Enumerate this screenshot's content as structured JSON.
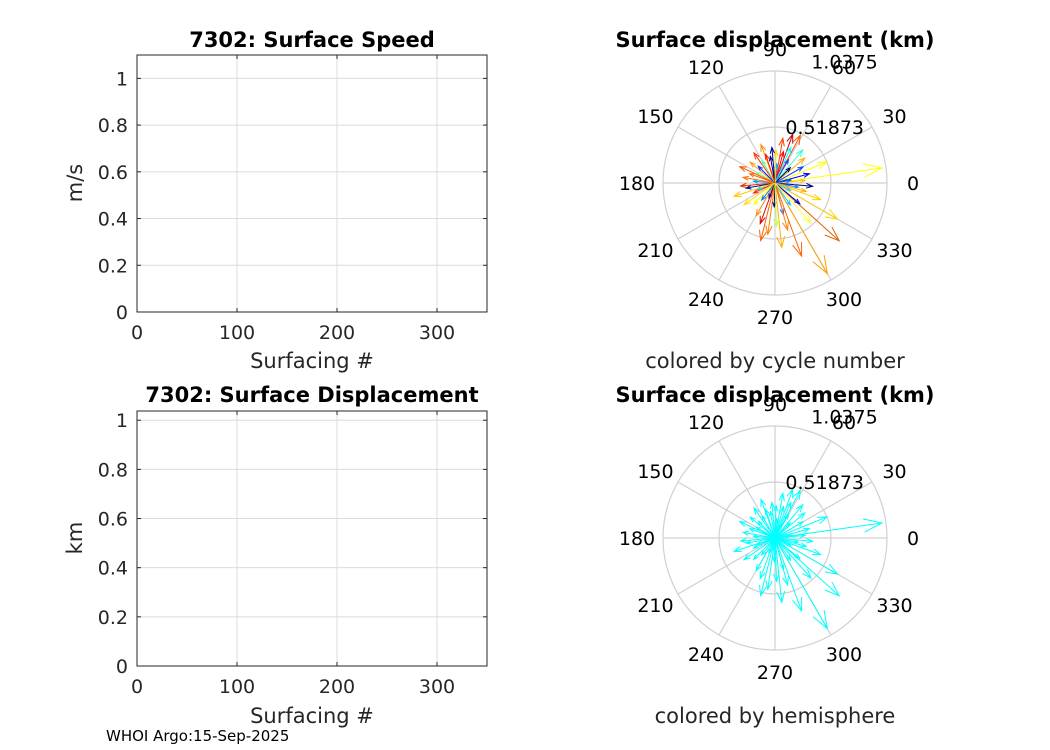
{
  "chart_data": [
    {
      "type": "scatter",
      "title": "7302: Surface Speed",
      "xlabel": "Surfacing #",
      "ylabel": "m/s",
      "xlim": [
        0,
        350
      ],
      "ylim": [
        0,
        1.1
      ],
      "xticks": [
        "0",
        "100",
        "200",
        "300"
      ],
      "yticks": [
        "0",
        "0.2",
        "0.4",
        "0.6",
        "0.8",
        "1"
      ],
      "grid": true,
      "series": []
    },
    {
      "type": "polar-quiver",
      "title": "Surface displacement (km)",
      "caption": "colored by cycle number",
      "rlim": [
        0,
        1.0375
      ],
      "rticks": [
        "0.51873",
        "1.0375"
      ],
      "thetaticks": [
        "0",
        "30",
        "60",
        "90",
        "120",
        "150",
        "180",
        "210",
        "240",
        "270",
        "300",
        "330"
      ],
      "arrows": [
        {
          "angle": 8,
          "r": 1.0,
          "color": "#ffff00"
        },
        {
          "angle": 22,
          "r": 0.52,
          "color": "#ffff00"
        },
        {
          "angle": 355,
          "r": 0.35,
          "color": "#000080"
        },
        {
          "angle": 340,
          "r": 0.45,
          "color": "#ffd000"
        },
        {
          "angle": 330,
          "r": 0.67,
          "color": "#ffd000"
        },
        {
          "angle": 318,
          "r": 0.8,
          "color": "#e06000"
        },
        {
          "angle": 300,
          "r": 0.97,
          "color": "#ffa000"
        },
        {
          "angle": 290,
          "r": 0.72,
          "color": "#ff6000"
        },
        {
          "angle": 276,
          "r": 0.6,
          "color": "#ffb000"
        },
        {
          "angle": 262,
          "r": 0.48,
          "color": "#ff8000"
        },
        {
          "angle": 250,
          "r": 0.4,
          "color": "#e00000"
        },
        {
          "angle": 240,
          "r": 0.35,
          "color": "#ff9000"
        },
        {
          "angle": 225,
          "r": 0.28,
          "color": "#ffff00"
        },
        {
          "angle": 205,
          "r": 0.22,
          "color": "#ff2000"
        },
        {
          "angle": 190,
          "r": 0.27,
          "color": "#000080"
        },
        {
          "angle": 175,
          "r": 0.2,
          "color": "#00a0ff"
        },
        {
          "angle": 160,
          "r": 0.25,
          "color": "#ff6000"
        },
        {
          "angle": 140,
          "r": 0.3,
          "color": "#ffa000"
        },
        {
          "angle": 125,
          "r": 0.34,
          "color": "#ff3000"
        },
        {
          "angle": 110,
          "r": 0.38,
          "color": "#ff9000"
        },
        {
          "angle": 95,
          "r": 0.33,
          "color": "#0000a0"
        },
        {
          "angle": 80,
          "r": 0.42,
          "color": "#ff4000"
        },
        {
          "angle": 70,
          "r": 0.48,
          "color": "#c00000"
        },
        {
          "angle": 62,
          "r": 0.5,
          "color": "#ff5000"
        },
        {
          "angle": 50,
          "r": 0.4,
          "color": "#30ffd0"
        },
        {
          "angle": 40,
          "r": 0.36,
          "color": "#ffb000"
        },
        {
          "angle": 30,
          "r": 0.3,
          "color": "#0040ff"
        },
        {
          "angle": 15,
          "r": 0.33,
          "color": "#0000ff"
        },
        {
          "angle": 5,
          "r": 0.28,
          "color": "#ffc000"
        },
        {
          "angle": 350,
          "r": 0.22,
          "color": "#1080ff"
        },
        {
          "angle": 320,
          "r": 0.3,
          "color": "#0000c0"
        },
        {
          "angle": 305,
          "r": 0.25,
          "color": "#00d0ff"
        },
        {
          "angle": 285,
          "r": 0.3,
          "color": "#2050ff"
        },
        {
          "angle": 268,
          "r": 0.22,
          "color": "#000090"
        },
        {
          "angle": 232,
          "r": 0.2,
          "color": "#0070ff"
        },
        {
          "angle": 200,
          "r": 0.18,
          "color": "#00c0e0"
        },
        {
          "angle": 150,
          "r": 0.2,
          "color": "#80ff80"
        },
        {
          "angle": 135,
          "r": 0.22,
          "color": "#0030ff"
        },
        {
          "angle": 100,
          "r": 0.25,
          "color": "#000080"
        },
        {
          "angle": 85,
          "r": 0.18,
          "color": "#00a0ff"
        },
        {
          "angle": 60,
          "r": 0.25,
          "color": "#2040ff"
        },
        {
          "angle": 45,
          "r": 0.2,
          "color": "#000070"
        },
        {
          "angle": 10,
          "r": 0.15,
          "color": "#0060ff"
        },
        {
          "angle": 335,
          "r": 0.16,
          "color": "#40c0ff"
        },
        {
          "angle": 248,
          "r": 0.15,
          "color": "#0000b0"
        },
        {
          "angle": 185,
          "r": 0.32,
          "color": "#e03000"
        },
        {
          "angle": 170,
          "r": 0.3,
          "color": "#ff7000"
        },
        {
          "angle": 215,
          "r": 0.35,
          "color": "#ffe000"
        },
        {
          "angle": 120,
          "r": 0.24,
          "color": "#60ff90"
        },
        {
          "angle": 75,
          "r": 0.3,
          "color": "#ff0000"
        },
        {
          "angle": 285,
          "r": 0.45,
          "color": "#ff8000"
        },
        {
          "angle": 312,
          "r": 0.5,
          "color": "#ffff40"
        },
        {
          "angle": 345,
          "r": 0.3,
          "color": "#ffb000"
        },
        {
          "angle": 155,
          "r": 0.36,
          "color": "#ff5000"
        },
        {
          "angle": 198,
          "r": 0.4,
          "color": "#ffc800"
        },
        {
          "angle": 256,
          "r": 0.55,
          "color": "#ff6000"
        },
        {
          "angle": 272,
          "r": 0.4,
          "color": "#c0ff40"
        },
        {
          "angle": 66,
          "r": 0.36,
          "color": "#00ffff"
        },
        {
          "angle": 88,
          "r": 0.3,
          "color": "#ffe000"
        },
        {
          "angle": 108,
          "r": 0.28,
          "color": "#ff2000"
        }
      ]
    },
    {
      "type": "scatter",
      "title": "7302: Surface Displacement",
      "xlabel": "Surfacing #",
      "ylabel": "km",
      "xlim": [
        0,
        350
      ],
      "ylim": [
        0,
        1.0375
      ],
      "xticks": [
        "0",
        "100",
        "200",
        "300"
      ],
      "yticks": [
        "0",
        "0.2",
        "0.4",
        "0.6",
        "0.8",
        "1"
      ],
      "grid": true,
      "series": []
    },
    {
      "type": "polar-quiver",
      "title": "Surface displacement (km)",
      "caption": "colored by hemisphere",
      "rlim": [
        0,
        1.0375
      ],
      "rticks": [
        "0.51873",
        "1.0375"
      ],
      "thetaticks": [
        "0",
        "30",
        "60",
        "90",
        "120",
        "150",
        "180",
        "210",
        "240",
        "270",
        "300",
        "330"
      ],
      "color": "#00ffff"
    }
  ],
  "footer": "WHOI Argo:15-Sep-2025"
}
